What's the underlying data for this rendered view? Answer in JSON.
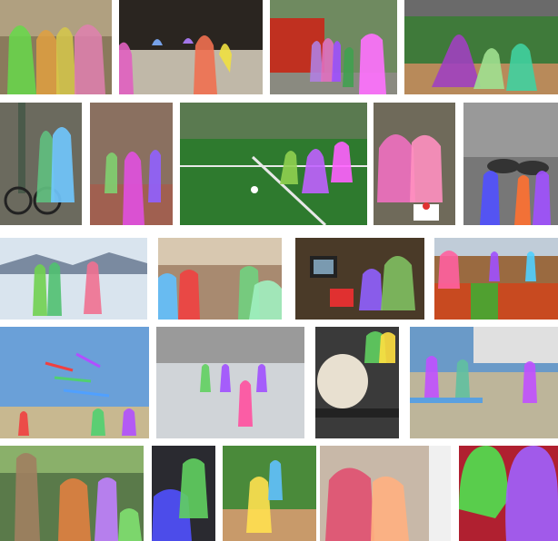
{
  "page": {
    "background": "#ffffff"
  },
  "collage": {
    "description_kind": "grid-of-segmentation-examples",
    "rows": 5,
    "tiles": [
      {
        "id": "r1c1",
        "scene": "indoor-group-people",
        "bg": "#8a7a5c",
        "masks": [
          "#66d94a",
          "#e0a040",
          "#d6c84a",
          "#e080b0"
        ]
      },
      {
        "id": "r1c2",
        "scene": "kitchen-cooks",
        "bg": "#2a2520",
        "masks": [
          "#e060c0",
          "#f07050",
          "#80b0ff",
          "#f0e040",
          "#b080ff"
        ]
      },
      {
        "id": "r1c3",
        "scene": "street-food-truck",
        "bg": "#6f8a60",
        "masks": [
          "#b080e0",
          "#e070c0",
          "#a050ff",
          "#ff70ff",
          "#40a050"
        ]
      },
      {
        "id": "r1c4",
        "scene": "baseball-field",
        "bg": "#3f7a3a",
        "masks": [
          "#a040c0",
          "#a0e090",
          "#40d0a0"
        ]
      },
      {
        "id": "r2c1",
        "scene": "bicycle-street",
        "bg": "#6b6a5e",
        "masks": [
          "#60c080",
          "#70c8ff",
          "#40d060"
        ]
      },
      {
        "id": "r2c2",
        "scene": "mall-walkers",
        "bg": "#a06050",
        "masks": [
          "#e050e0",
          "#80d070",
          "#9060ff"
        ]
      },
      {
        "id": "r2c3",
        "scene": "soccer-field",
        "bg": "#2e7a2e",
        "masks": [
          "#c060ff",
          "#90d050",
          "#ff60ff"
        ]
      },
      {
        "id": "r2c4",
        "scene": "couple-cake",
        "bg": "#6f6a5a",
        "masks": [
          "#f070c0",
          "#ff90c0"
        ]
      },
      {
        "id": "r2c5",
        "scene": "umbrellas-street",
        "bg": "#777777",
        "masks": [
          "#5050ff",
          "#ff7030",
          "#a050ff"
        ]
      },
      {
        "id": "r3c1",
        "scene": "ski-slope",
        "bg": "#d9e4ee",
        "masks": [
          "#70d050",
          "#50c070",
          "#f07090"
        ]
      },
      {
        "id": "r3c2",
        "scene": "restaurant-diners",
        "bg": "#a88a70",
        "masks": [
          "#f04040",
          "#60c0ff",
          "#70d080",
          "#a0f0c0"
        ]
      },
      {
        "id": "r3c3",
        "scene": "living-room-tv",
        "bg": "#4a3a28",
        "masks": [
          "#9060ff",
          "#80c060"
        ]
      },
      {
        "id": "r3c4",
        "scene": "fruit-market",
        "bg": "#9a6a40",
        "masks": [
          "#ff60a0",
          "#a050ff",
          "#50d0ff"
        ]
      },
      {
        "id": "r4c1",
        "scene": "beach-kites",
        "bg": "#6aa0d8",
        "masks": [
          "#f04040",
          "#50d070",
          "#b050ff"
        ]
      },
      {
        "id": "r4c2",
        "scene": "snow-crowd",
        "bg": "#d0d4d8",
        "masks": [
          "#ff50a0",
          "#60d060",
          "#a050ff"
        ]
      },
      {
        "id": "r4c3",
        "scene": "dog-on-skateboard",
        "bg": "#3a3a3a",
        "masks": [
          "#60d060",
          "#ffe040"
        ]
      },
      {
        "id": "r4c4",
        "scene": "beach-walkers",
        "bg": "#bdb59a",
        "masks": [
          "#c050ff",
          "#60c0a0",
          "#80e070"
        ]
      },
      {
        "id": "r5c1",
        "scene": "park-group",
        "bg": "#5a7a4a",
        "masks": [
          "#a08060",
          "#e08040",
          "#c080ff"
        ]
      },
      {
        "id": "r5c2",
        "scene": "kitchen-child",
        "bg": "#2a2a30",
        "masks": [
          "#5050ff",
          "#60d060"
        ]
      },
      {
        "id": "r5c3",
        "scene": "tennis-court",
        "bg": "#4a8a3a",
        "masks": [
          "#ffe050",
          "#60c0ff"
        ]
      },
      {
        "id": "r5c4",
        "scene": "indoor-hug",
        "bg": "#c8b8a8",
        "masks": [
          "#e05070",
          "#ffb080"
        ]
      },
      {
        "id": "r5c5",
        "scene": "face-closeup",
        "bg": "#b02030",
        "masks": [
          "#50e050",
          "#a060ff"
        ]
      }
    ]
  }
}
